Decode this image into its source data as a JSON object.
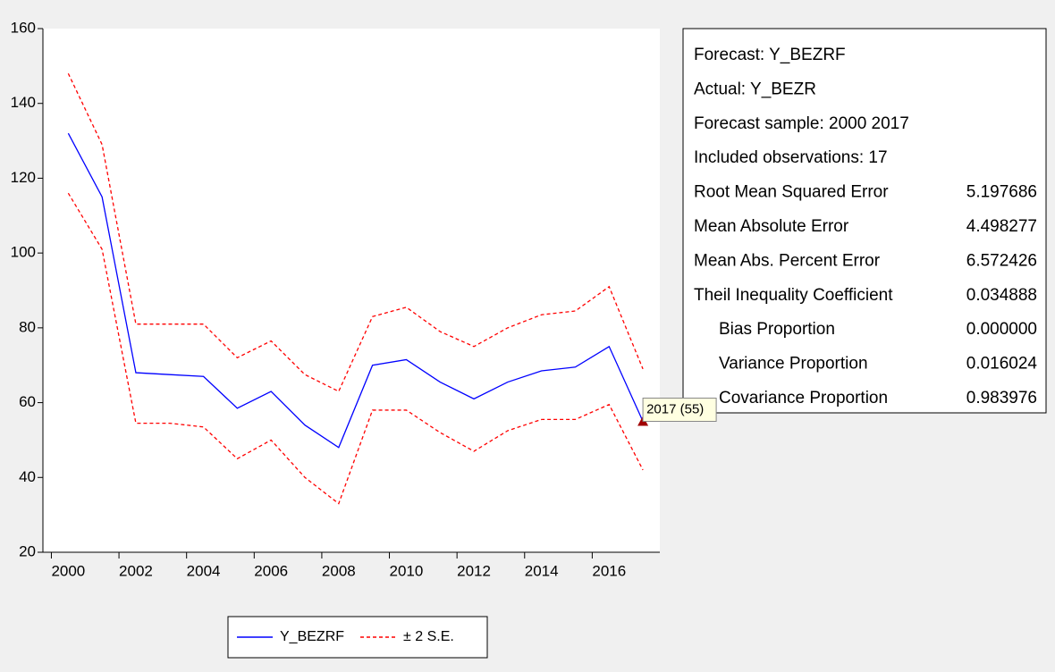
{
  "chart_data": {
    "type": "line",
    "x": [
      2000,
      2001,
      2002,
      2003,
      2004,
      2005,
      2006,
      2007,
      2008,
      2009,
      2010,
      2011,
      2012,
      2013,
      2014,
      2015,
      2016,
      2017
    ],
    "series": [
      {
        "name": "Y_BEZRF",
        "color": "#0000ff",
        "values": [
          132,
          115,
          68,
          67.5,
          67,
          58.5,
          63,
          54,
          48,
          70,
          71.5,
          65.5,
          61,
          65.5,
          68.5,
          69.5,
          75,
          55
        ]
      },
      {
        "name": "± 2 S.E.",
        "color": "#ff0000",
        "dashed": true,
        "upper": [
          148,
          129,
          81,
          81,
          81,
          72,
          76.5,
          67.5,
          63,
          83,
          85.5,
          79,
          75,
          80,
          83.5,
          84.5,
          91,
          69
        ],
        "lower": [
          116,
          101,
          54.5,
          54.5,
          53.5,
          45,
          50,
          40,
          33,
          58,
          58,
          52,
          47,
          52.5,
          55.5,
          55.5,
          59.5,
          42
        ]
      }
    ],
    "xlim": [
      1999.25,
      2017.5
    ],
    "xticks": [
      2000,
      2002,
      2004,
      2006,
      2008,
      2010,
      2012,
      2014,
      2016
    ],
    "ylim": [
      20,
      160
    ],
    "yticks": [
      20,
      40,
      60,
      80,
      100,
      120,
      140,
      160
    ],
    "tooltip": "2017 (55)"
  },
  "stats": {
    "header": [
      "Forecast: Y_BEZRF",
      "Actual: Y_BEZR",
      "Forecast sample: 2000 2017",
      "Included observations: 17"
    ],
    "rows": [
      [
        "Root Mean Squared Error",
        "5.197686"
      ],
      [
        "Mean Absolute Error",
        "4.498277"
      ],
      [
        "Mean Abs. Percent Error",
        "6.572426"
      ],
      [
        "Theil Inequality Coefficient",
        "0.034888"
      ],
      [
        "Bias Proportion",
        "0.000000"
      ],
      [
        "Variance Proportion",
        "0.016024"
      ],
      [
        "Covariance Proportion",
        "0.983976"
      ]
    ],
    "indented_from": 4
  }
}
